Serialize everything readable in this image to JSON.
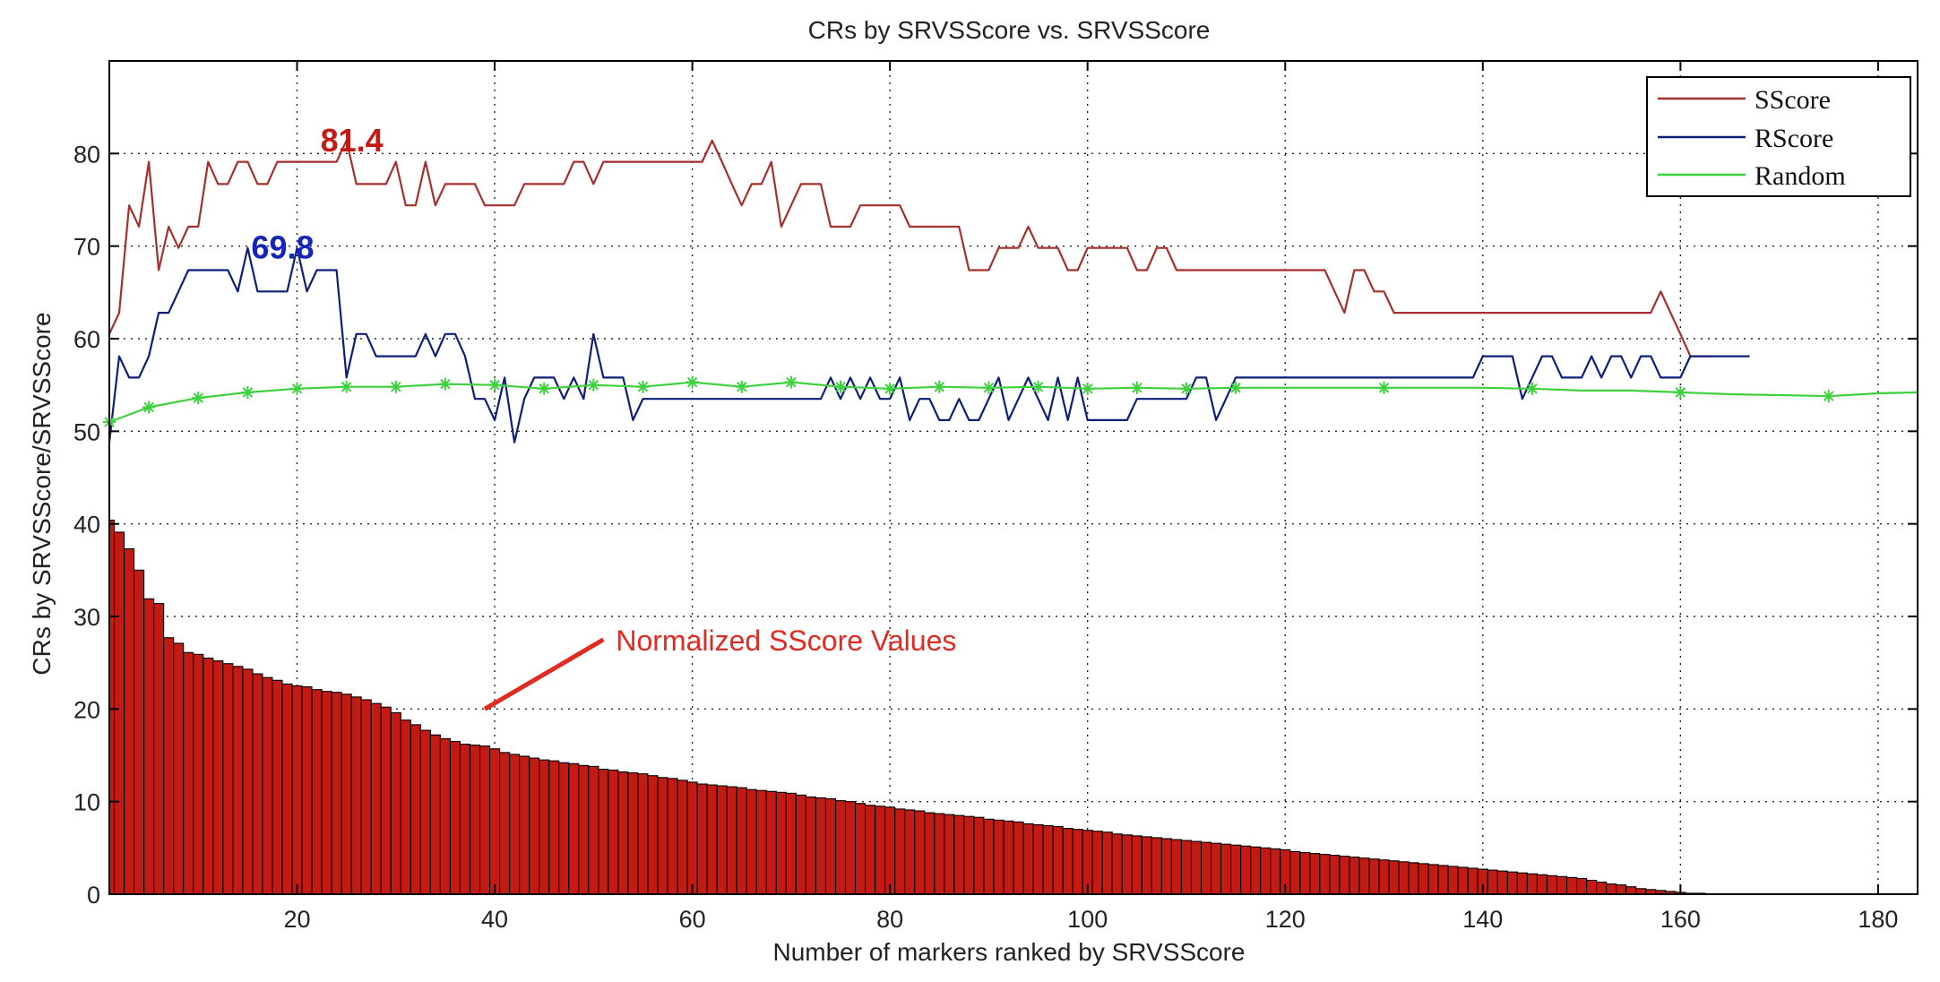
{
  "chart_data": {
    "type": "line",
    "title": "CRs by SRVSScore vs. SRVSScore",
    "xlabel": "Number of markers ranked by SRVSScore",
    "ylabel": "CRs by SRVSScore/SRVSScore",
    "xlim": [
      1,
      184
    ],
    "ylim": [
      0,
      90
    ],
    "xticks": [
      20,
      40,
      60,
      80,
      100,
      120,
      140,
      160,
      180
    ],
    "yticks": [
      0,
      10,
      20,
      30,
      40,
      50,
      60,
      70,
      80
    ],
    "grid": true,
    "legend_position": "top-right",
    "series": [
      {
        "name": "SScore",
        "color": "#a4302e",
        "x": [
          1,
          2,
          3,
          4,
          5,
          6,
          7,
          8,
          9,
          10,
          11,
          12,
          13,
          14,
          15,
          16,
          17,
          18,
          19,
          20,
          21,
          22,
          23,
          24,
          25,
          26,
          27,
          28,
          29,
          30,
          31,
          32,
          33,
          34,
          35,
          36,
          37,
          38,
          39,
          40,
          41,
          42,
          43,
          44,
          45,
          46,
          47,
          48,
          49,
          50,
          51,
          52,
          53,
          54,
          55,
          56,
          57,
          58,
          59,
          60,
          61,
          62,
          63,
          64,
          65,
          66,
          67,
          68,
          69,
          70,
          71,
          72,
          73,
          74,
          75,
          76,
          77,
          78,
          79,
          80,
          81,
          82,
          83,
          84,
          85,
          86,
          87,
          88,
          89,
          90,
          91,
          92,
          93,
          94,
          95,
          96,
          97,
          98,
          99,
          100,
          101,
          102,
          103,
          104,
          105,
          106,
          107,
          108,
          109,
          110,
          111,
          112,
          113,
          114,
          115,
          116,
          117,
          118,
          119,
          120,
          121,
          122,
          123,
          124,
          125,
          126,
          127,
          128,
          129,
          130,
          131,
          132,
          133,
          134,
          135,
          136,
          137,
          138,
          139,
          140,
          141,
          142,
          143,
          144,
          145,
          146,
          147,
          148,
          149,
          150,
          151,
          152,
          153,
          154,
          155,
          156,
          157,
          158,
          159,
          160,
          161,
          162,
          163
        ],
        "values": [
          60.5,
          62.8,
          74.4,
          72.1,
          79.1,
          67.4,
          72.1,
          69.8,
          72.1,
          72.1,
          79.1,
          76.7,
          76.7,
          79.1,
          79.1,
          76.7,
          76.7,
          79.1,
          79.1,
          79.1,
          79.1,
          79.1,
          79.1,
          79.1,
          81.4,
          76.7,
          76.7,
          76.7,
          76.7,
          79.1,
          74.4,
          74.4,
          79.1,
          74.4,
          76.7,
          76.7,
          76.7,
          76.7,
          74.4,
          74.4,
          74.4,
          74.4,
          76.7,
          76.7,
          76.7,
          76.7,
          76.7,
          79.1,
          79.1,
          76.7,
          79.1,
          79.1,
          79.1,
          79.1,
          79.1,
          79.1,
          79.1,
          79.1,
          79.1,
          79.1,
          79.1,
          81.4,
          79.1,
          76.7,
          74.4,
          76.7,
          76.7,
          79.1,
          72.1,
          74.4,
          76.7,
          76.7,
          76.7,
          72.1,
          72.1,
          72.1,
          74.4,
          74.4,
          74.4,
          74.4,
          74.4,
          72.1,
          72.1,
          72.1,
          72.1,
          72.1,
          72.1,
          67.4,
          67.4,
          67.4,
          69.8,
          69.8,
          69.8,
          72.1,
          69.8,
          69.8,
          69.8,
          67.4,
          67.4,
          69.8,
          69.8,
          69.8,
          69.8,
          69.8,
          67.4,
          67.4,
          69.8,
          69.8,
          67.4,
          67.4,
          67.4,
          67.4,
          67.4,
          67.4,
          67.4,
          67.4,
          67.4,
          67.4,
          67.4,
          67.4,
          67.4,
          67.4,
          67.4,
          67.4,
          65.1,
          62.8,
          67.4,
          67.4,
          65.1,
          65.1,
          62.8,
          62.8,
          62.8,
          62.8,
          62.8,
          62.8,
          62.8,
          62.8,
          62.8,
          62.8,
          62.8,
          62.8,
          62.8,
          62.8,
          62.8,
          62.8,
          62.8,
          62.8,
          62.8,
          62.8,
          62.8,
          62.8,
          62.8,
          62.8,
          62.8,
          62.8,
          62.8,
          65.1,
          62.8,
          60.5,
          58.1,
          58.1,
          58.1
        ]
      },
      {
        "name": "RScore",
        "color": "#0d1f78",
        "x": [
          1,
          2,
          3,
          4,
          5,
          6,
          7,
          8,
          9,
          10,
          11,
          12,
          13,
          14,
          15,
          16,
          17,
          18,
          19,
          20,
          21,
          22,
          23,
          24,
          25,
          26,
          27,
          28,
          29,
          30,
          31,
          32,
          33,
          34,
          35,
          36,
          37,
          38,
          39,
          40,
          41,
          42,
          43,
          44,
          45,
          46,
          47,
          48,
          49,
          50,
          51,
          52,
          53,
          54,
          55,
          56,
          57,
          58,
          59,
          60,
          61,
          62,
          63,
          64,
          65,
          66,
          67,
          68,
          69,
          70,
          71,
          72,
          73,
          74,
          75,
          76,
          77,
          78,
          79,
          80,
          81,
          82,
          83,
          84,
          85,
          86,
          87,
          88,
          89,
          90,
          91,
          92,
          93,
          94,
          95,
          96,
          97,
          98,
          99,
          100,
          101,
          102,
          103,
          104,
          105,
          106,
          107,
          108,
          109,
          110,
          111,
          112,
          113,
          114,
          115,
          116,
          117,
          118,
          119,
          120,
          121,
          122,
          123,
          124,
          125,
          126,
          127,
          128,
          129,
          130,
          131,
          132,
          133,
          134,
          135,
          136,
          137,
          138,
          139,
          140,
          141,
          142,
          143,
          144,
          145,
          146,
          147,
          148,
          149,
          150,
          151,
          152,
          153,
          154,
          155,
          156,
          157,
          158,
          159,
          160,
          161,
          162,
          163,
          164,
          165,
          166,
          167
        ],
        "values": [
          48.8,
          58.1,
          55.8,
          55.8,
          58.1,
          62.8,
          62.8,
          65.1,
          67.4,
          67.4,
          67.4,
          67.4,
          67.4,
          65.1,
          69.8,
          65.1,
          65.1,
          65.1,
          65.1,
          69.8,
          65.1,
          67.4,
          67.4,
          67.4,
          55.8,
          60.5,
          60.5,
          58.1,
          58.1,
          58.1,
          58.1,
          58.1,
          60.5,
          58.1,
          60.5,
          60.5,
          58.1,
          53.5,
          53.5,
          51.2,
          55.8,
          48.8,
          53.5,
          55.8,
          55.8,
          55.8,
          53.5,
          55.8,
          53.5,
          60.5,
          55.8,
          55.8,
          55.8,
          51.2,
          53.5,
          53.5,
          53.5,
          53.5,
          53.5,
          53.5,
          53.5,
          53.5,
          53.5,
          53.5,
          53.5,
          53.5,
          53.5,
          53.5,
          53.5,
          53.5,
          53.5,
          53.5,
          53.5,
          55.8,
          53.5,
          55.8,
          53.5,
          55.8,
          53.5,
          53.5,
          55.8,
          51.2,
          53.5,
          53.5,
          51.2,
          51.2,
          53.5,
          51.2,
          51.2,
          53.5,
          55.8,
          51.2,
          53.5,
          55.8,
          53.5,
          51.2,
          55.8,
          51.2,
          55.8,
          51.2,
          51.2,
          51.2,
          51.2,
          51.2,
          53.5,
          53.5,
          53.5,
          53.5,
          53.5,
          53.5,
          55.8,
          55.8,
          51.2,
          53.5,
          55.8,
          55.8,
          55.8,
          55.8,
          55.8,
          55.8,
          55.8,
          55.8,
          55.8,
          55.8,
          55.8,
          55.8,
          55.8,
          55.8,
          55.8,
          55.8,
          55.8,
          55.8,
          55.8,
          55.8,
          55.8,
          55.8,
          55.8,
          55.8,
          55.8,
          58.1,
          58.1,
          58.1,
          58.1,
          53.5,
          55.8,
          58.1,
          58.1,
          55.8,
          55.8,
          55.8,
          58.1,
          55.8,
          58.1,
          58.1,
          55.8,
          58.1,
          58.1,
          55.8,
          55.8,
          55.8,
          58.1,
          58.1,
          58.1,
          58.1,
          58.1,
          58.1,
          58.1
        ]
      },
      {
        "name": "Random",
        "color": "#3ed13e",
        "x": [
          1,
          5,
          10,
          15,
          20,
          25,
          30,
          35,
          40,
          45,
          50,
          55,
          60,
          65,
          70,
          75,
          80,
          85,
          90,
          95,
          100,
          105,
          110,
          115,
          120,
          125,
          130,
          135,
          140,
          145,
          150,
          155,
          160,
          165,
          170,
          175,
          180,
          184
        ],
        "values": [
          51.0,
          52.6,
          53.6,
          54.2,
          54.6,
          54.8,
          54.8,
          55.1,
          55.0,
          54.6,
          55.0,
          54.8,
          55.3,
          54.8,
          55.3,
          54.8,
          54.6,
          54.8,
          54.7,
          54.8,
          54.6,
          54.7,
          54.6,
          54.7,
          54.7,
          54.7,
          54.7,
          54.7,
          54.7,
          54.6,
          54.4,
          54.4,
          54.2,
          54.0,
          53.9,
          53.8,
          54.1,
          54.2
        ],
        "markers_x": [
          1,
          5,
          10,
          15,
          20,
          25,
          30,
          35,
          40,
          45,
          50,
          55,
          60,
          65,
          70,
          75,
          80,
          85,
          90,
          95,
          100,
          105,
          110,
          115,
          130,
          145,
          160,
          175
        ]
      }
    ],
    "bar_series": {
      "name": "Normalized SScore Values",
      "color": "#c41a14",
      "start_x": 1,
      "values": [
        40.4,
        39.1,
        37.3,
        35.0,
        31.9,
        31.4,
        27.7,
        27.1,
        26.1,
        25.9,
        25.5,
        25.2,
        24.9,
        24.6,
        24.3,
        23.8,
        23.4,
        23.1,
        22.7,
        22.5,
        22.4,
        22.1,
        21.9,
        21.8,
        21.6,
        21.3,
        21.0,
        20.6,
        20.2,
        19.6,
        18.8,
        18.3,
        17.7,
        17.2,
        16.8,
        16.5,
        16.2,
        16.1,
        16.0,
        15.7,
        15.3,
        15.1,
        14.9,
        14.7,
        14.5,
        14.4,
        14.2,
        14.1,
        13.9,
        13.8,
        13.5,
        13.4,
        13.2,
        13.1,
        13.0,
        12.8,
        12.6,
        12.5,
        12.3,
        12.1,
        11.9,
        11.8,
        11.7,
        11.6,
        11.5,
        11.3,
        11.2,
        11.1,
        11.0,
        10.9,
        10.7,
        10.5,
        10.4,
        10.3,
        10.1,
        10.0,
        9.8,
        9.6,
        9.5,
        9.4,
        9.2,
        9.1,
        9.0,
        8.8,
        8.7,
        8.6,
        8.5,
        8.4,
        8.3,
        8.1,
        8.0,
        7.9,
        7.8,
        7.6,
        7.5,
        7.4,
        7.3,
        7.1,
        7.0,
        6.9,
        6.8,
        6.7,
        6.5,
        6.4,
        6.3,
        6.2,
        6.1,
        6.0,
        5.9,
        5.8,
        5.7,
        5.6,
        5.5,
        5.4,
        5.3,
        5.2,
        5.1,
        5.0,
        4.9,
        4.8,
        4.6,
        4.5,
        4.4,
        4.3,
        4.2,
        4.1,
        4.0,
        3.9,
        3.8,
        3.7,
        3.6,
        3.5,
        3.4,
        3.3,
        3.2,
        3.1,
        3.0,
        2.9,
        2.8,
        2.7,
        2.6,
        2.5,
        2.4,
        2.3,
        2.2,
        2.1,
        2.0,
        1.9,
        1.8,
        1.7,
        1.5,
        1.3,
        1.1,
        1.0,
        0.8,
        0.6,
        0.5,
        0.4,
        0.3,
        0.2,
        0.1,
        0.1,
        0.05,
        0.05
      ]
    },
    "annotations": [
      {
        "text": "81.4",
        "x": 25,
        "y": 81.4,
        "color": "#c41a14"
      },
      {
        "text": "69.8",
        "x": 18,
        "y": 69.8,
        "color": "#1425b8"
      },
      {
        "text": "Normalized SScore Values",
        "color": "#e02a22",
        "arrow_from": [
          51,
          27.5
        ],
        "arrow_to": [
          39,
          20
        ]
      }
    ]
  }
}
